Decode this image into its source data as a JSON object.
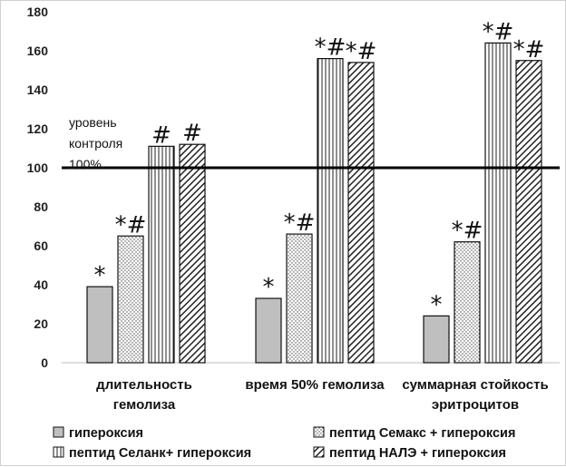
{
  "chart_data": {
    "type": "bar",
    "title": "",
    "xlabel": "",
    "ylabel": "",
    "ylim": [
      0,
      180
    ],
    "yticks": [
      0,
      20,
      40,
      60,
      80,
      100,
      120,
      140,
      160,
      180
    ],
    "grid": false,
    "legend_position": "bottom",
    "categories": [
      [
        "длительность",
        "гемолиза"
      ],
      [
        "время 50% гемолиза"
      ],
      [
        "суммарная стойкость",
        "эритроцитов"
      ]
    ],
    "series": [
      {
        "name": "гипероксия",
        "pattern": "solid-gray",
        "color": "#bfbfbf",
        "values": [
          39,
          33,
          24
        ],
        "markers": [
          "*",
          "*",
          "*"
        ]
      },
      {
        "name": "пептид Семакс + гипероксия",
        "pattern": "dots",
        "color": "#ffffff",
        "values": [
          65,
          66,
          62
        ],
        "markers": [
          "*#",
          "*#",
          "*#"
        ]
      },
      {
        "name": "пептид Селанк+ гипероксия",
        "pattern": "vertical-lines",
        "color": "#ffffff",
        "values": [
          111,
          156,
          164
        ],
        "markers": [
          "#",
          "*#",
          "*#"
        ]
      },
      {
        "name": "пептид НАЛЭ + гипероксия",
        "pattern": "diagonal-hatch",
        "color": "#ffffff",
        "values": [
          112,
          154,
          155
        ],
        "markers": [
          "#",
          "*#",
          "*#"
        ]
      }
    ],
    "reference_line": {
      "value": 100,
      "label": [
        "уровень",
        "контроля",
        "100%"
      ]
    }
  }
}
